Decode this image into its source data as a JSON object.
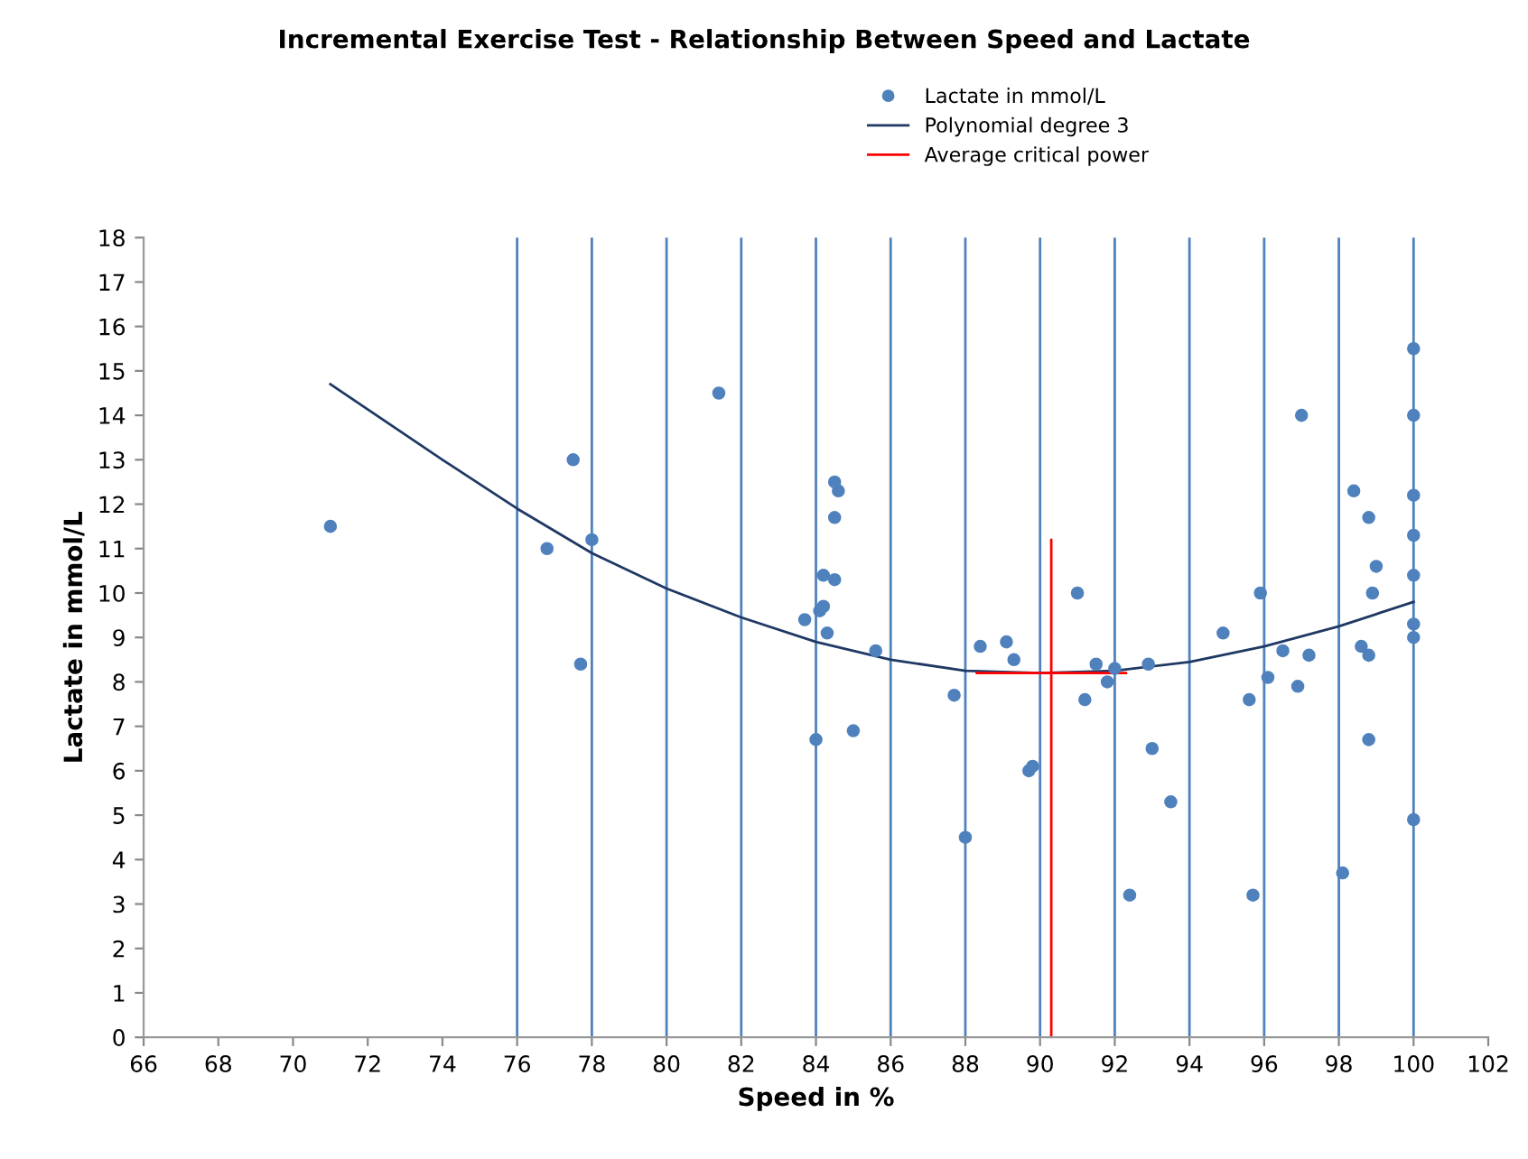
{
  "chart_data": {
    "type": "scatter",
    "title": "Incremental Exercise Test - Relationship Between Speed and Lactate",
    "xlabel": "Speed in %",
    "ylabel": "Lactate in mmol/L",
    "xlim": [
      66,
      102
    ],
    "xticks": [
      66,
      68,
      70,
      72,
      74,
      76,
      78,
      80,
      82,
      84,
      86,
      88,
      90,
      92,
      94,
      96,
      98,
      100,
      102
    ],
    "ylim": [
      0,
      18
    ],
    "yticks": [
      0,
      1,
      2,
      3,
      4,
      5,
      6,
      7,
      8,
      9,
      10,
      11,
      12,
      13,
      14,
      15,
      16,
      17,
      18
    ],
    "grid": false,
    "legend": "top",
    "series": [
      {
        "name": "Lactate in mmol/L",
        "marker": "circle",
        "color": "#4f81bd",
        "x": [
          71,
          76.8,
          77.5,
          77.7,
          78,
          81.4,
          83.7,
          84.0,
          84.1,
          84.2,
          84.2,
          84.3,
          84.5,
          84.6,
          84.5,
          84.5,
          85.0,
          85.6,
          87.7,
          88.0,
          88.4,
          89.1,
          89.3,
          89.7,
          89.8,
          91.0,
          91.2,
          91.5,
          91.8,
          92.0,
          92.4,
          92.9,
          93.0,
          93.5,
          94.9,
          95.6,
          95.7,
          95.9,
          96.1,
          96.5,
          96.9,
          97.0,
          97.2,
          98.1,
          98.4,
          98.6,
          98.8,
          98.8,
          98.8,
          98.9,
          99.0,
          100,
          100,
          100,
          100,
          100,
          100,
          100,
          100
        ],
        "values": [
          11.5,
          11.0,
          13.0,
          8.4,
          11.2,
          14.5,
          9.4,
          6.7,
          9.6,
          9.7,
          10.4,
          9.1,
          12.5,
          12.3,
          11.7,
          10.3,
          6.9,
          8.7,
          7.7,
          4.5,
          8.8,
          8.9,
          8.5,
          6.0,
          6.1,
          10.0,
          7.6,
          8.4,
          8.0,
          8.3,
          3.2,
          8.4,
          6.5,
          5.3,
          9.1,
          7.6,
          3.2,
          10.0,
          8.1,
          8.7,
          7.9,
          14.0,
          8.6,
          3.7,
          12.3,
          8.8,
          11.7,
          8.6,
          6.7,
          10.0,
          10.6,
          15.5,
          14.0,
          12.2,
          11.3,
          10.4,
          9.3,
          9.0,
          4.9
        ]
      },
      {
        "name": "Polynomial degree 3",
        "type": "line",
        "marker": "none",
        "line_style": "solid",
        "color": "#1f3864",
        "x": [
          71,
          74,
          76,
          78,
          80,
          82,
          84,
          86,
          88,
          90,
          92,
          94,
          96,
          98,
          100
        ],
        "values": [
          14.7,
          13.0,
          11.9,
          10.9,
          10.1,
          9.45,
          8.9,
          8.5,
          8.25,
          8.2,
          8.25,
          8.45,
          8.8,
          9.25,
          9.8
        ]
      },
      {
        "name": "Average critical power",
        "type": "line",
        "marker": "none",
        "line_style": "solid",
        "color": "#ff0000",
        "x": [
          90.3,
          90.3,
          90.3,
          88.3,
          92.3
        ],
        "values": [
          0,
          11.2,
          8.2,
          8.2,
          8.2
        ]
      }
    ],
    "ref_lines": [
      {
        "axis": "x",
        "value": 76,
        "color": "#4f81bd"
      },
      {
        "axis": "x",
        "value": 78,
        "color": "#4f81bd"
      },
      {
        "axis": "x",
        "value": 80,
        "color": "#4f81bd"
      },
      {
        "axis": "x",
        "value": 82,
        "color": "#4f81bd"
      },
      {
        "axis": "x",
        "value": 84,
        "color": "#4f81bd"
      },
      {
        "axis": "x",
        "value": 86,
        "color": "#4f81bd"
      },
      {
        "axis": "x",
        "value": 88,
        "color": "#4f81bd"
      },
      {
        "axis": "x",
        "value": 90,
        "color": "#4f81bd"
      },
      {
        "axis": "x",
        "value": 92,
        "color": "#4f81bd"
      },
      {
        "axis": "x",
        "value": 94,
        "color": "#4f81bd"
      },
      {
        "axis": "x",
        "value": 96,
        "color": "#4f81bd"
      },
      {
        "axis": "x",
        "value": 98,
        "color": "#4f81bd"
      },
      {
        "axis": "x",
        "value": 100,
        "color": "#4f81bd"
      }
    ]
  }
}
